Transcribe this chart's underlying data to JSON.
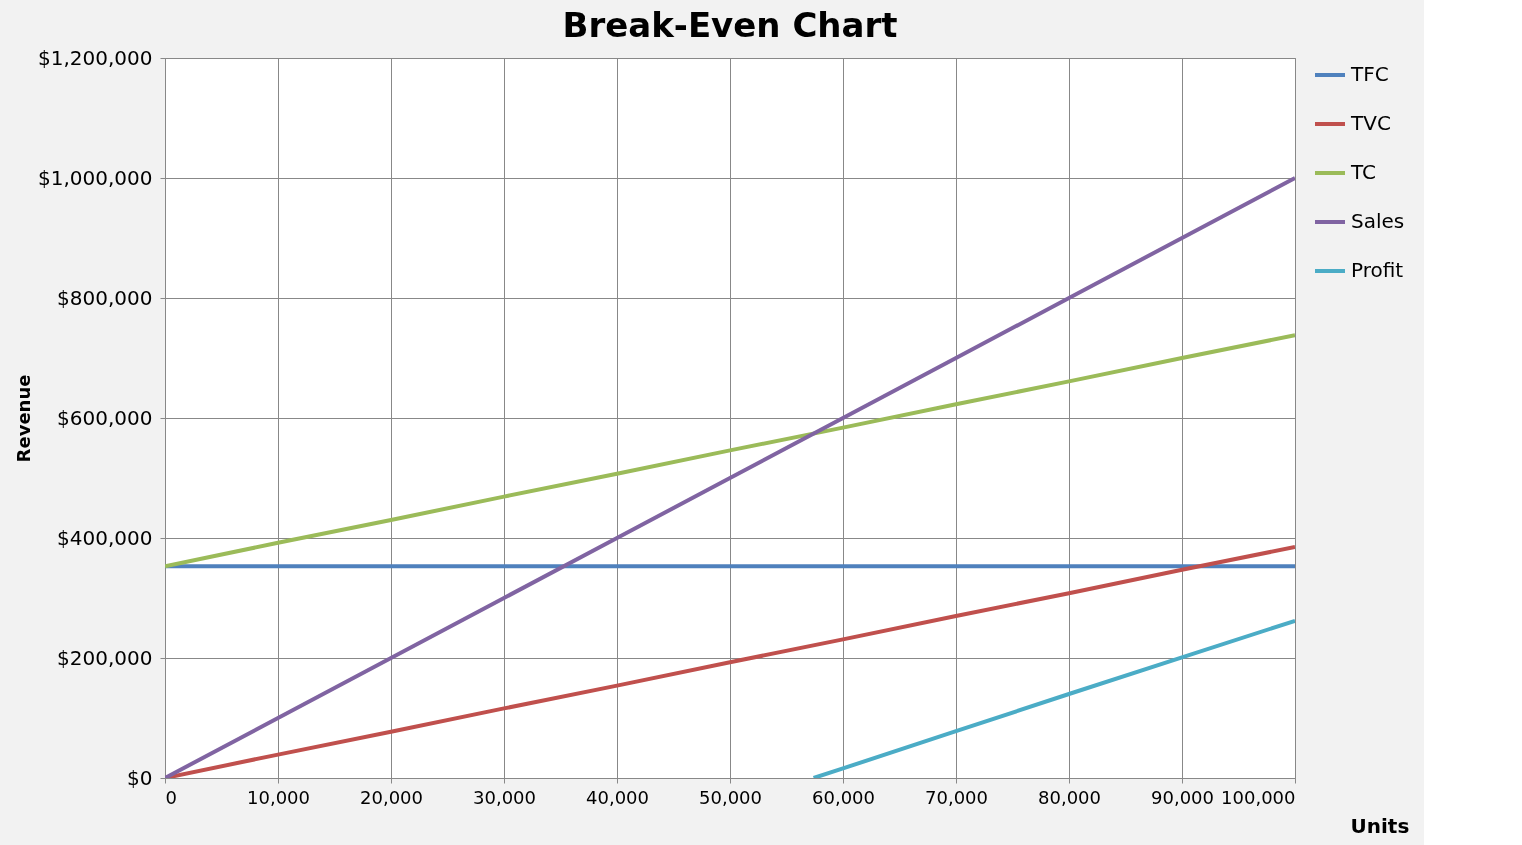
{
  "chart_data": {
    "type": "line",
    "title": "Break-Even Chart",
    "xlabel": "Units",
    "ylabel": "Revenue",
    "xlim": [
      0,
      100000
    ],
    "ylim": [
      0,
      1200000
    ],
    "xticks": [
      0,
      {
        "value": 10000,
        "label": "10,000"
      },
      {
        "value": 20000,
        "label": "20,000"
      },
      {
        "value": 30000,
        "label": "30,000"
      },
      {
        "value": 40000,
        "label": "40,000"
      },
      {
        "value": 50000,
        "label": "50,000"
      },
      {
        "value": 60000,
        "label": "60,000"
      },
      {
        "value": 70000,
        "label": "70,000"
      },
      {
        "value": 80000,
        "label": "80,000"
      },
      {
        "value": 90000,
        "label": "90,000"
      },
      {
        "value": 100000,
        "label": "100,000"
      }
    ],
    "yticks": [
      {
        "value": 0,
        "label": "$0"
      },
      {
        "value": 200000,
        "label": "$200,000"
      },
      {
        "value": 400000,
        "label": "$400,000"
      },
      {
        "value": 600000,
        "label": "$600,000"
      },
      {
        "value": 800000,
        "label": "$800,000"
      },
      {
        "value": 1000000,
        "label": "$1,000,000"
      },
      {
        "value": 1200000,
        "label": "$1,200,000"
      }
    ],
    "x": [
      0,
      10000,
      20000,
      30000,
      40000,
      50000,
      60000,
      70000,
      80000,
      90000,
      100000
    ],
    "series": [
      {
        "name": "TFC",
        "color": "#4f81bd",
        "values": [
          353000,
          353000,
          353000,
          353000,
          353000,
          353000,
          353000,
          353000,
          353000,
          353000,
          353000
        ]
      },
      {
        "name": "TVC",
        "color": "#c0504d",
        "values": [
          0,
          39000,
          77000,
          116000,
          154000,
          193000,
          231000,
          270000,
          308000,
          347000,
          385000
        ]
      },
      {
        "name": "TC",
        "color": "#9bbb59",
        "values": [
          353000,
          392000,
          430000,
          469000,
          507000,
          546000,
          584000,
          623000,
          661000,
          700000,
          738000
        ]
      },
      {
        "name": "Sales",
        "color": "#8064a2",
        "values": [
          0,
          100000,
          200000,
          300000,
          400000,
          500000,
          600000,
          700000,
          800000,
          900000,
          1000000
        ]
      },
      {
        "name": "Profit",
        "color": "#4bacc6",
        "x": [
          57400,
          60000,
          70000,
          80000,
          90000,
          100000
        ],
        "values": [
          0,
          16000,
          78000,
          140000,
          201000,
          262000
        ]
      }
    ],
    "grid": true,
    "legend": "right",
    "marker": "none",
    "line_style": "solid"
  }
}
